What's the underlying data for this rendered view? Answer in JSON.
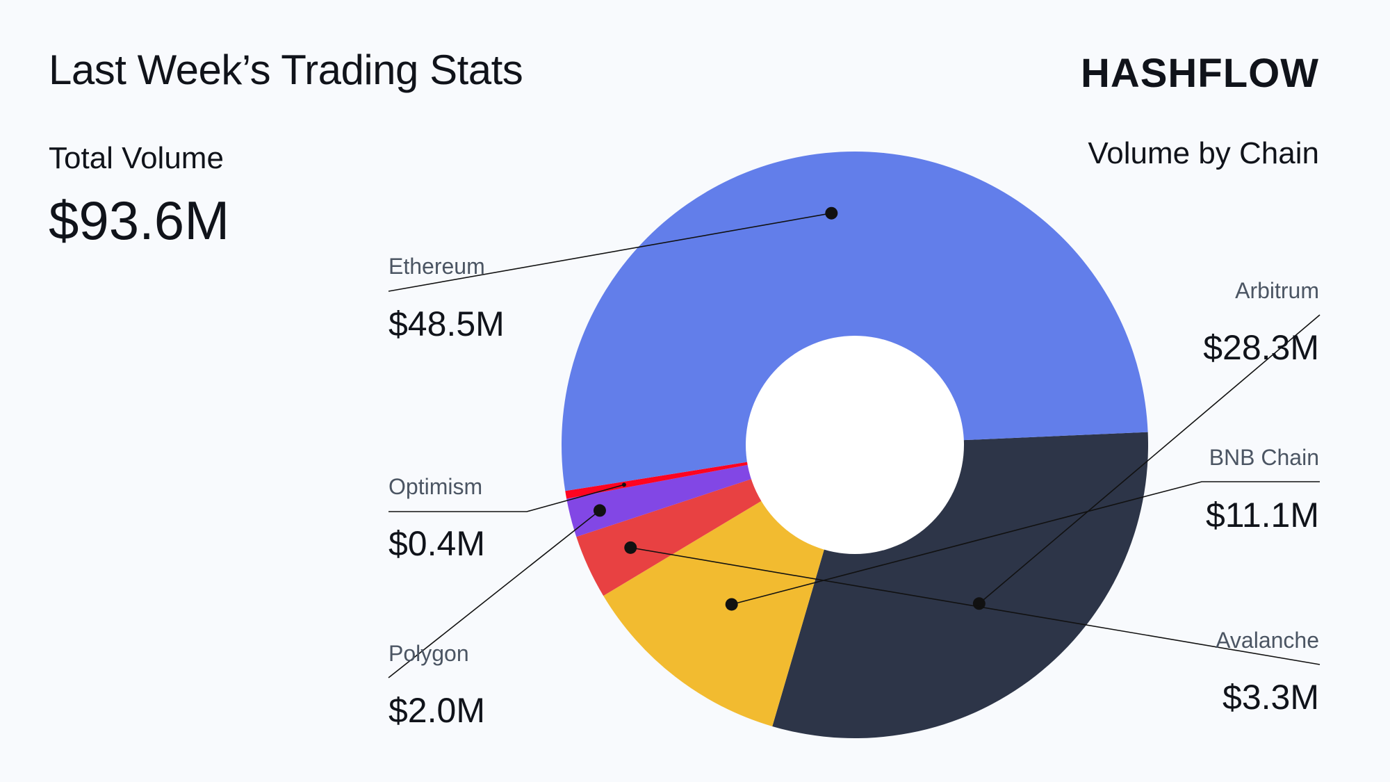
{
  "header": {
    "title": "Last Week’s Trading Stats",
    "logo_text": "HASHFLOW"
  },
  "summary": {
    "total_label": "Total Volume",
    "total_value": "$93.6M"
  },
  "chart_data": {
    "type": "pie",
    "title": "Volume by Chain",
    "unit": "$M",
    "center_hole": true,
    "slices": [
      {
        "name": "Arbitrum",
        "value": 28.3,
        "label": "$28.3M",
        "color": "#2d3548"
      },
      {
        "name": "BNB Chain",
        "value": 11.1,
        "label": "$11.1M",
        "color": "#f2bb30"
      },
      {
        "name": "Avalanche",
        "value": 3.3,
        "label": "$3.3M",
        "color": "#e84142"
      },
      {
        "name": "Polygon",
        "value": 2.0,
        "label": "$2.0M",
        "color": "#8247e5"
      },
      {
        "name": "Optimism",
        "value": 0.4,
        "label": "$0.4M",
        "color": "#ff0420"
      },
      {
        "name": "Ethereum",
        "value": 48.5,
        "label": "$48.5M",
        "color": "#627eea"
      }
    ],
    "total": 93.6
  }
}
